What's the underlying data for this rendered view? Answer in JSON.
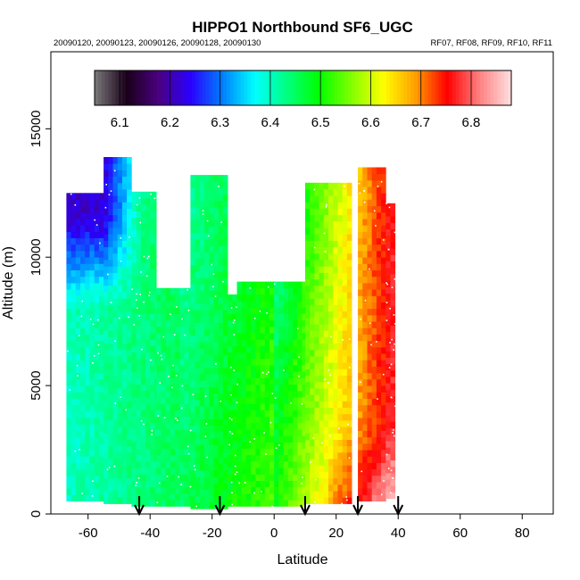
{
  "chart_data": {
    "type": "heatmap",
    "title": "HIPPO1 Northbound SF6_UGC",
    "subtitle_left": "20090120, 20090123, 20090126, 20090128, 20090130",
    "subtitle_right": "RF07, RF08, RF09, RF10, RF11",
    "xlabel": "Latitude",
    "ylabel": "Altitude (m)",
    "xlim": [
      -72,
      90
    ],
    "ylim": [
      0,
      18000
    ],
    "x_ticks": [
      -60,
      -40,
      -20,
      0,
      20,
      40,
      60,
      80
    ],
    "y_ticks": [
      0,
      5000,
      10000,
      15000
    ],
    "colorbar": {
      "min": 6.05,
      "max": 6.88,
      "ticks": [
        6.1,
        6.2,
        6.3,
        6.4,
        6.5,
        6.6,
        6.7,
        6.8
      ],
      "colors": [
        "#7a7a7a",
        "#1a001a",
        "#4a0080",
        "#2a00ff",
        "#0080ff",
        "#00ffff",
        "#00ff80",
        "#00ff00",
        "#80ff00",
        "#ffff00",
        "#ffa000",
        "#ff0000",
        "#ff8080",
        "#ffe0e0"
      ]
    },
    "arrow_latitudes": [
      -43.5,
      -17.5,
      10,
      27,
      40
    ],
    "columns": [
      {
        "lat_min": -67,
        "lat_max": -55,
        "top": 12500,
        "bottom": 500
      },
      {
        "lat_min": -55,
        "lat_max": -46,
        "top": 13800,
        "bottom": 400
      },
      {
        "lat_min": -46,
        "lat_max": -38,
        "top": 12500,
        "bottom": 300
      },
      {
        "lat_min": -38,
        "lat_max": -27,
        "top": 8800,
        "bottom": 300
      },
      {
        "lat_min": -27,
        "lat_max": -15,
        "top": 13000,
        "bottom": 200
      },
      {
        "lat_min": -15,
        "lat_max": -12,
        "top": 8500,
        "bottom": 300
      },
      {
        "lat_min": -12,
        "lat_max": 10,
        "top": 9000,
        "bottom": 300
      },
      {
        "lat_min": 10,
        "lat_max": 25,
        "top": 12800,
        "bottom": 400
      },
      {
        "lat_min": 27,
        "lat_max": 36,
        "top": 13400,
        "bottom": 500
      },
      {
        "lat_min": 36,
        "lat_max": 39,
        "top": 12000,
        "bottom": 600
      }
    ]
  }
}
